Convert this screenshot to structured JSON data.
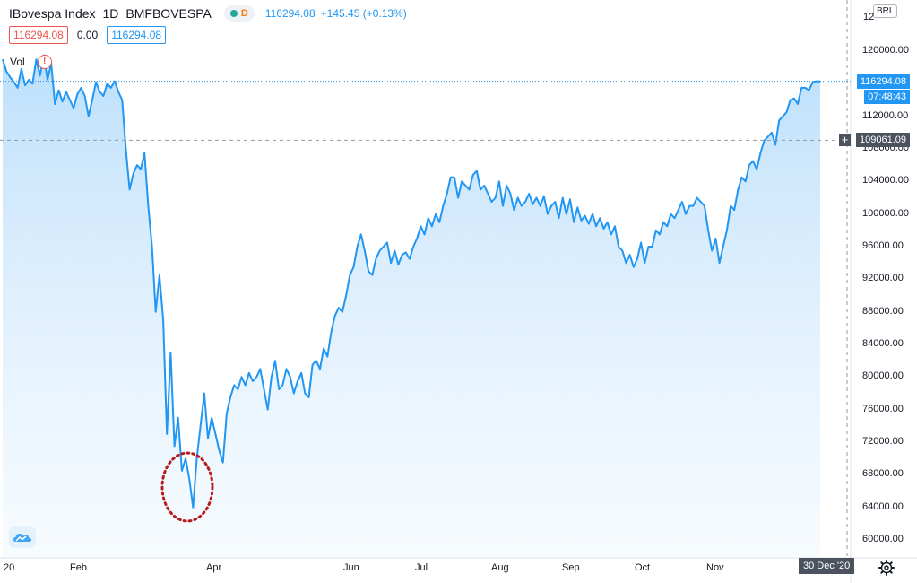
{
  "legend": {
    "symbol": "IBovespa Index",
    "interval": "1D",
    "exchange": "BMFBOVESPA",
    "badge_letter": "D",
    "last_price": "116294.08",
    "change": "+145.45 (+0.13%)",
    "up_color": "#2196f3"
  },
  "ohlc_row": {
    "box1": "116294.08",
    "mid": "0.00",
    "box2": "116294.08"
  },
  "volume_label": "Vol",
  "warning_glyph": "!",
  "currency": "BRL",
  "price_axis": {
    "top_partial": "12",
    "ticks": [
      "120000.00",
      "116000.00",
      "112000.00",
      "108000.00",
      "104000.00",
      "100000.00",
      "96000.00",
      "92000.00",
      "88000.00",
      "84000.00",
      "80000.00",
      "76000.00",
      "72000.00",
      "68000.00",
      "64000.00",
      "60000.00"
    ]
  },
  "time_axis": [
    "20",
    "Feb",
    "Apr",
    "Jun",
    "Jul",
    "Aug",
    "Sep",
    "Oct",
    "Nov"
  ],
  "last_price_tag": "116294.08",
  "countdown_tag": "07:48:43",
  "crosshair_price_tag": "109061.09",
  "crosshair_date_tag": "30 Dec '20",
  "icons": {
    "logo": "tradingview-logo-icon",
    "settings": "gear-icon"
  },
  "chart_data": {
    "type": "area",
    "series": [
      {
        "values": [
          119000,
          117500,
          116800,
          116200,
          115500,
          117800,
          115800,
          116500,
          116000,
          119000,
          117000,
          119500,
          116500,
          118500,
          113500,
          115200,
          113800,
          115000,
          114000,
          113000,
          114700,
          115500,
          114500,
          112000,
          114000,
          116200,
          115000,
          114500,
          116000,
          115500,
          116300,
          115000,
          114000,
          108000,
          103000,
          105000,
          106000,
          105500,
          107500,
          101000,
          96000,
          88000,
          92500,
          87000,
          73000,
          83000,
          71500,
          75000,
          68500,
          70000,
          67500,
          64000,
          70000,
          74000,
          78000,
          72500,
          75000,
          73000,
          71000,
          69500,
          75500,
          77500,
          79000,
          78500,
          80000,
          79000,
          80500,
          79500,
          80000,
          81000,
          78500,
          76000,
          80000,
          82000,
          78500,
          79000,
          81000,
          80000,
          78000,
          79500,
          80500,
          78000,
          77500,
          81500,
          82000,
          81000,
          83500,
          82500,
          85500,
          87500,
          88500,
          88000,
          90000,
          92500,
          93500,
          96000,
          97500,
          95500,
          93000,
          92500,
          94500,
          95500,
          96000,
          96500,
          94000,
          95500,
          93800,
          95000,
          95300,
          94500,
          96000,
          97000,
          98500,
          97500,
          99500,
          98500,
          100000,
          99000,
          101000,
          102500,
          104500,
          104500,
          102000,
          104000,
          103500,
          103000,
          104800,
          105300,
          103000,
          103500,
          102500,
          101500,
          102000,
          104000,
          101000,
          103500,
          102500,
          100500,
          102000,
          101000,
          101500,
          102500,
          101200,
          102000,
          101000,
          102200,
          100000,
          101000,
          101500,
          99500,
          102000,
          100000,
          101800,
          99000,
          100800,
          99200,
          99800,
          98800,
          100000,
          98500,
          99500,
          98200,
          99000,
          97500,
          98500,
          96000,
          95500,
          94000,
          95000,
          93500,
          94500,
          96500,
          94000,
          96000,
          96000,
          98000,
          97500,
          99000,
          98500,
          100000,
          99500,
          100500,
          101500,
          100000,
          101000,
          101000,
          102000,
          101500,
          101000,
          98000,
          95500,
          97000,
          94000,
          96000,
          98000,
          101000,
          100500,
          103000,
          104500,
          104000,
          106000,
          106500,
          105500,
          107500,
          109000,
          109500,
          110000,
          108500,
          111500,
          112000,
          112500,
          114000,
          114200,
          113500,
          115500,
          115500,
          115200,
          116200,
          116300,
          116294
        ]
      }
    ],
    "ylim": [
      58000,
      124000
    ],
    "crosshair_value": 109061.09
  }
}
